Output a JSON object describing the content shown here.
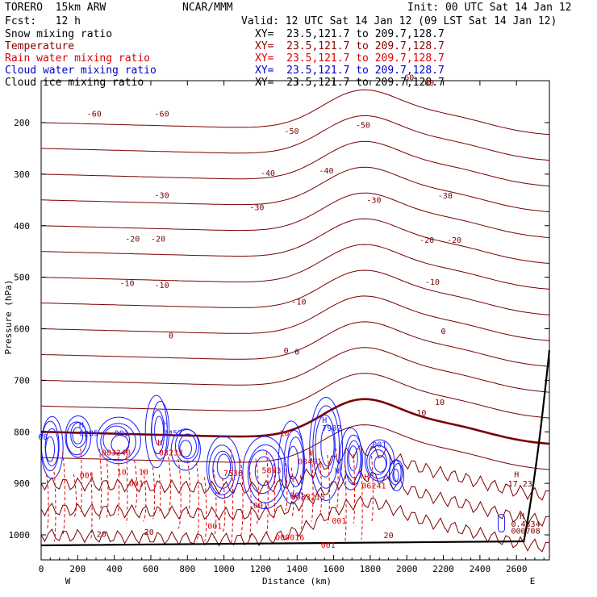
{
  "header": {
    "model": "TORERO  15km ARW",
    "org": "NCAR/MMM",
    "init": "Init: 00 UTC Sat 14 Jan 12",
    "fcst": "Fcst:   12 h",
    "valid": "Valid: 12 UTC Sat 14 Jan 12 (09 LST Sat 14 Jan 12)"
  },
  "legend": [
    {
      "name": "Snow mixing ratio",
      "xy": "XY=  23.5,121.7 to 209.7,128.7",
      "color": "#000000"
    },
    {
      "name": "Temperature",
      "xy": "XY=  23.5,121.7 to 209.7,128.7",
      "color": "#8b0000"
    },
    {
      "name": "Rain water mixing ratio",
      "xy": "XY=  23.5,121.7 to 209.7,128.7",
      "color": "#e00000"
    },
    {
      "name": "Cloud water mixing ratio",
      "xy": "XY=  23.5,121.7 to 209.7,128.7",
      "color": "#0000cc"
    },
    {
      "name": "Cloud ice mixing ratio",
      "xy": "XY=  23.5,121.7 to 209.7,128.7",
      "color": "#000000"
    }
  ],
  "chart_data": {
    "type": "contour",
    "xlabel": "Distance (km)",
    "ylabel": "Pressure (hPa)",
    "xlim": [
      0,
      2780
    ],
    "ylim": [
      1050,
      100
    ],
    "x_ticks": [
      "0",
      "200",
      "400",
      "600",
      "800",
      "1000",
      "1200",
      "1400",
      "1600",
      "1800",
      "2000",
      "2200",
      "2400",
      "2600"
    ],
    "y_ticks": [
      "200",
      "300",
      "400",
      "500",
      "600",
      "700",
      "800",
      "900",
      "1000"
    ],
    "x_tick_values": [
      0,
      200,
      400,
      600,
      800,
      1000,
      1200,
      1400,
      1600,
      1800,
      2000,
      2200,
      2400,
      2600
    ],
    "y_tick_values": [
      200,
      300,
      400,
      500,
      600,
      700,
      800,
      900,
      1000
    ],
    "west_label": "W",
    "east_label": "E",
    "temperature_levels": [
      -60,
      -55,
      -50,
      -45,
      -40,
      -35,
      -30,
      -25,
      -20,
      -15,
      -10,
      -5,
      0,
      5,
      10,
      15,
      20
    ],
    "temperature_labels": [
      {
        "text": "-60",
        "x": 290,
        "p": 188
      },
      {
        "text": "-60",
        "x": 660,
        "p": 188
      },
      {
        "text": "-60",
        "x": 2000,
        "p": 118
      },
      {
        "text": "-60",
        "x": 2110,
        "p": 128
      },
      {
        "text": "-50",
        "x": 1370,
        "p": 222
      },
      {
        "text": "-50",
        "x": 1760,
        "p": 210
      },
      {
        "text": "-40",
        "x": 1240,
        "p": 303
      },
      {
        "text": "-40",
        "x": 1560,
        "p": 299
      },
      {
        "text": "-30",
        "x": 660,
        "p": 346
      },
      {
        "text": "-30",
        "x": 1180,
        "p": 370
      },
      {
        "text": "-30",
        "x": 1820,
        "p": 356
      },
      {
        "text": "-30",
        "x": 2210,
        "p": 347
      },
      {
        "text": "-20",
        "x": 500,
        "p": 431
      },
      {
        "text": "-20",
        "x": 640,
        "p": 431
      },
      {
        "text": "-20",
        "x": 2110,
        "p": 433
      },
      {
        "text": "-20",
        "x": 2260,
        "p": 433
      },
      {
        "text": "-10",
        "x": 470,
        "p": 517
      },
      {
        "text": "-10",
        "x": 660,
        "p": 521
      },
      {
        "text": "-10",
        "x": 1410,
        "p": 553
      },
      {
        "text": "-10",
        "x": 2140,
        "p": 515
      },
      {
        "text": "0",
        "x": 710,
        "p": 619
      },
      {
        "text": "0",
        "x": 1340,
        "p": 648
      },
      {
        "text": "0",
        "x": 1400,
        "p": 650
      },
      {
        "text": "0",
        "x": 2200,
        "p": 610
      },
      {
        "text": "10",
        "x": 2080,
        "p": 768
      },
      {
        "text": "10",
        "x": 2180,
        "p": 748
      },
      {
        "text": "20",
        "x": 330,
        "p": 1004
      },
      {
        "text": "20",
        "x": 590,
        "p": 1000
      },
      {
        "text": "20",
        "x": 1900,
        "p": 1006
      }
    ],
    "cloud_water_labels": [
      {
        "text": "H",
        "x": 220,
        "p": 792
      },
      {
        "text": "6285",
        "x": 260,
        "p": 808
      },
      {
        "text": "H",
        "x": 680,
        "p": 790
      },
      {
        "text": "7457",
        "x": 720,
        "p": 808
      },
      {
        "text": "H",
        "x": 1550,
        "p": 782
      },
      {
        "text": "7902",
        "x": 1590,
        "p": 798
      },
      {
        "text": "001",
        "x": 440,
        "p": 808
      },
      {
        "text": "001",
        "x": 1850,
        "p": 830
      },
      {
        "text": "68",
        "x": 10,
        "p": 815
      },
      {
        "text": "H",
        "x": 1620,
        "p": 880
      },
      {
        "text": "001",
        "x": 1400,
        "p": 929
      }
    ],
    "rain_labels": [
      {
        "text": "003240",
        "x": 410,
        "p": 846
      },
      {
        "text": "H",
        "x": 650,
        "p": 826
      },
      {
        "text": "03233",
        "x": 710,
        "p": 846
      },
      {
        "text": "001",
        "x": 250,
        "p": 890
      },
      {
        "text": "001",
        "x": 520,
        "p": 905
      },
      {
        "text": "10",
        "x": 440,
        "p": 883
      },
      {
        "text": "10",
        "x": 560,
        "p": 883
      },
      {
        "text": "H",
        "x": 1480,
        "p": 845
      },
      {
        "text": "03401",
        "x": 1470,
        "p": 863
      },
      {
        "text": "H",
        "x": 1780,
        "p": 893
      },
      {
        "text": "06241",
        "x": 1820,
        "p": 910
      },
      {
        "text": "0033215",
        "x": 1460,
        "p": 932
      },
      {
        "text": "001",
        "x": 1200,
        "p": 948
      },
      {
        "text": "001",
        "x": 950,
        "p": 988
      },
      {
        "text": "000016",
        "x": 1360,
        "p": 1010
      },
      {
        "text": "001",
        "x": 1570,
        "p": 1025
      },
      {
        "text": "7536",
        "x": 1050,
        "p": 886
      },
      {
        "text": "5893",
        "x": 1260,
        "p": 880
      },
      {
        "text": "001",
        "x": 1630,
        "p": 978
      },
      {
        "text": "10",
        "x": 1330,
        "p": 808
      }
    ],
    "hilo_labels": [
      {
        "text": "H",
        "x": 2600,
        "p": 888
      },
      {
        "text": "17.23",
        "x": 2620,
        "p": 906
      },
      {
        "text": "H",
        "x": 2630,
        "p": 969
      },
      {
        "text": "0.4334",
        "x": 2650,
        "p": 984
      },
      {
        "text": "000708",
        "x": 2650,
        "p": 998
      }
    ]
  }
}
